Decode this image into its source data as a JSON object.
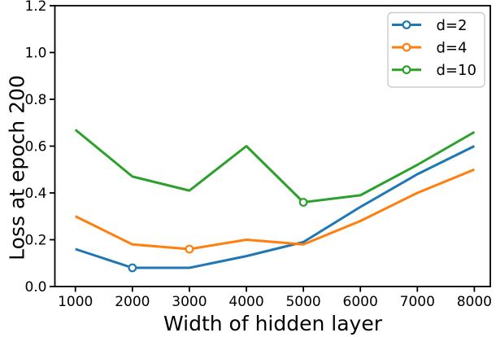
{
  "figure": {
    "background": "#ffffff",
    "text_color": "#000000",
    "spine_color": "#000000"
  },
  "chart_data": {
    "type": "line",
    "title": "",
    "xlabel": "Width of hidden layer",
    "ylabel": "Loss at epoch 200",
    "x": [
      1000,
      2000,
      3000,
      4000,
      5000,
      6000,
      7000,
      8000
    ],
    "series": [
      {
        "name": "d=2",
        "color": "#1f77b4",
        "values": [
          0.16,
          0.08,
          0.08,
          0.13,
          0.19,
          0.34,
          0.48,
          0.6
        ],
        "marker_index": 1
      },
      {
        "name": "d=4",
        "color": "#ff7f0e",
        "values": [
          0.3,
          0.18,
          0.16,
          0.2,
          0.18,
          0.28,
          0.4,
          0.5
        ],
        "marker_index": 2
      },
      {
        "name": "d=10",
        "color": "#2ca02c",
        "values": [
          0.67,
          0.47,
          0.41,
          0.6,
          0.36,
          0.39,
          0.52,
          0.66
        ],
        "marker_index": 4
      }
    ],
    "xticks": [
      1000,
      2000,
      3000,
      4000,
      5000,
      6000,
      7000,
      8000
    ],
    "yticks": [
      "0.0",
      "0.2",
      "0.4",
      "0.6",
      "0.8",
      "1.0",
      "1.2"
    ],
    "xlim": [
      640,
      8280
    ],
    "ylim": [
      0,
      1.2
    ],
    "grid": false,
    "legend": {
      "position": "upper right",
      "labels": [
        "d=2",
        "d=4",
        "d=10"
      ],
      "border_color": "#cccccc",
      "background": "#ffffff"
    }
  }
}
